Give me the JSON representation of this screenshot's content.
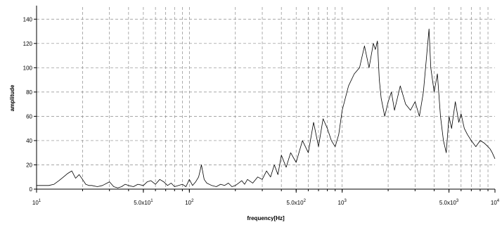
{
  "chart_data": {
    "type": "line",
    "xlabel": "frequency[Hz]",
    "ylabel": "amplitude",
    "xscale": "log",
    "xlim": [
      10,
      10000
    ],
    "ylim": [
      0,
      150
    ],
    "grid": true,
    "legend": "none",
    "y_ticks": [
      {
        "value": 0,
        "label": "0"
      },
      {
        "value": 20,
        "label": "20"
      },
      {
        "value": 40,
        "label": "40"
      },
      {
        "value": 60,
        "label": "60"
      },
      {
        "value": 80,
        "label": "80"
      },
      {
        "value": 100,
        "label": "100"
      },
      {
        "value": 120,
        "label": "120"
      },
      {
        "value": 140,
        "label": "140"
      }
    ],
    "x_ticks": [
      {
        "value": 10,
        "base": "10",
        "exp": "1"
      },
      {
        "value": 50,
        "base": "5.0x10",
        "exp": "1"
      },
      {
        "value": 100,
        "base": "10",
        "exp": "2"
      },
      {
        "value": 500,
        "base": "5.0x10",
        "exp": "2"
      },
      {
        "value": 1000,
        "base": "10",
        "exp": "3"
      },
      {
        "value": 5000,
        "base": "5.0x10",
        "exp": "3"
      },
      {
        "value": 10000,
        "base": "10",
        "exp": "4"
      }
    ],
    "series": [
      {
        "color": "#000000",
        "x": [
          10,
          11,
          12,
          13,
          14,
          15,
          16,
          17,
          17.5,
          18,
          19,
          20,
          21,
          22,
          23,
          25,
          27,
          30,
          32,
          34,
          36,
          38,
          40,
          43,
          46,
          50,
          53,
          56,
          60,
          64,
          68,
          72,
          76,
          80,
          85,
          90,
          95,
          100,
          105,
          110,
          115,
          120,
          125,
          130,
          140,
          150,
          160,
          170,
          180,
          190,
          200,
          210,
          220,
          230,
          240,
          260,
          280,
          300,
          320,
          340,
          360,
          380,
          400,
          430,
          460,
          500,
          550,
          600,
          650,
          700,
          750,
          800,
          850,
          900,
          950,
          1000,
          1100,
          1200,
          1300,
          1400,
          1500,
          1600,
          1650,
          1700,
          1750,
          1800,
          1900,
          2000,
          2100,
          2200,
          2400,
          2600,
          2800,
          3000,
          3200,
          3400,
          3600,
          3700,
          3800,
          3900,
          4000,
          4200,
          4400,
          4600,
          4800,
          5000,
          5200,
          5500,
          5800,
          6000,
          6300,
          6600,
          7000,
          7500,
          8000,
          8500,
          9000,
          9300,
          9600,
          10000
        ],
        "y": [
          3,
          3,
          3,
          4,
          7,
          10,
          13,
          15,
          12,
          9,
          12,
          8,
          4,
          3,
          3,
          2,
          3,
          6,
          2,
          1,
          2,
          4,
          3,
          2,
          4,
          3,
          6,
          7,
          4,
          8,
          6,
          3,
          5,
          2,
          3,
          4,
          2,
          8,
          3,
          6,
          10,
          20,
          8,
          5,
          3,
          2,
          4,
          3,
          5,
          2,
          3,
          5,
          7,
          4,
          8,
          5,
          10,
          8,
          15,
          10,
          20,
          12,
          28,
          18,
          30,
          22,
          40,
          30,
          55,
          35,
          58,
          50,
          40,
          35,
          45,
          65,
          85,
          95,
          100,
          118,
          100,
          120,
          115,
          122,
          90,
          75,
          60,
          72,
          80,
          65,
          85,
          70,
          65,
          72,
          60,
          80,
          115,
          132,
          100,
          90,
          80,
          95,
          60,
          40,
          30,
          60,
          50,
          72,
          55,
          62,
          50,
          45,
          40,
          35,
          40,
          38,
          35,
          33,
          30,
          25
        ]
      }
    ]
  }
}
